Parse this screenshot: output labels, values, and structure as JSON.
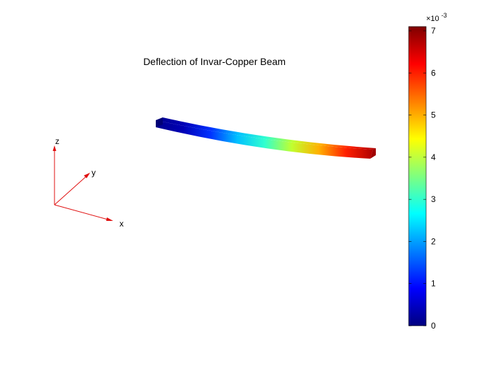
{
  "figure": {
    "title": "Deflection of Invar-Copper Beam"
  },
  "axes_triad": {
    "x_label": "x",
    "y_label": "y",
    "z_label": "z",
    "color": "#e01010"
  },
  "colorbar": {
    "colormap": "jet",
    "min": 0,
    "max": 7.1,
    "ticks": [
      "0",
      "1",
      "2",
      "3",
      "4",
      "5",
      "6",
      "7"
    ],
    "multiplier_base": "×10",
    "multiplier_exponent": "-3"
  },
  "colormap_colors": [
    "#00007f",
    "#0000ff",
    "#007fff",
    "#00ffff",
    "#7fff7f",
    "#ffff00",
    "#ff7f00",
    "#ff0000",
    "#7f0000"
  ],
  "beam": {
    "quantity": "deflection",
    "fixed_end_value": 0,
    "free_end_value": 0.0071,
    "color_stops": [
      "#00008f",
      "#0000b5",
      "#0030ff",
      "#00c0ff",
      "#30ffd0",
      "#c0ff30",
      "#ffb000",
      "#ff2000",
      "#b00000"
    ]
  }
}
